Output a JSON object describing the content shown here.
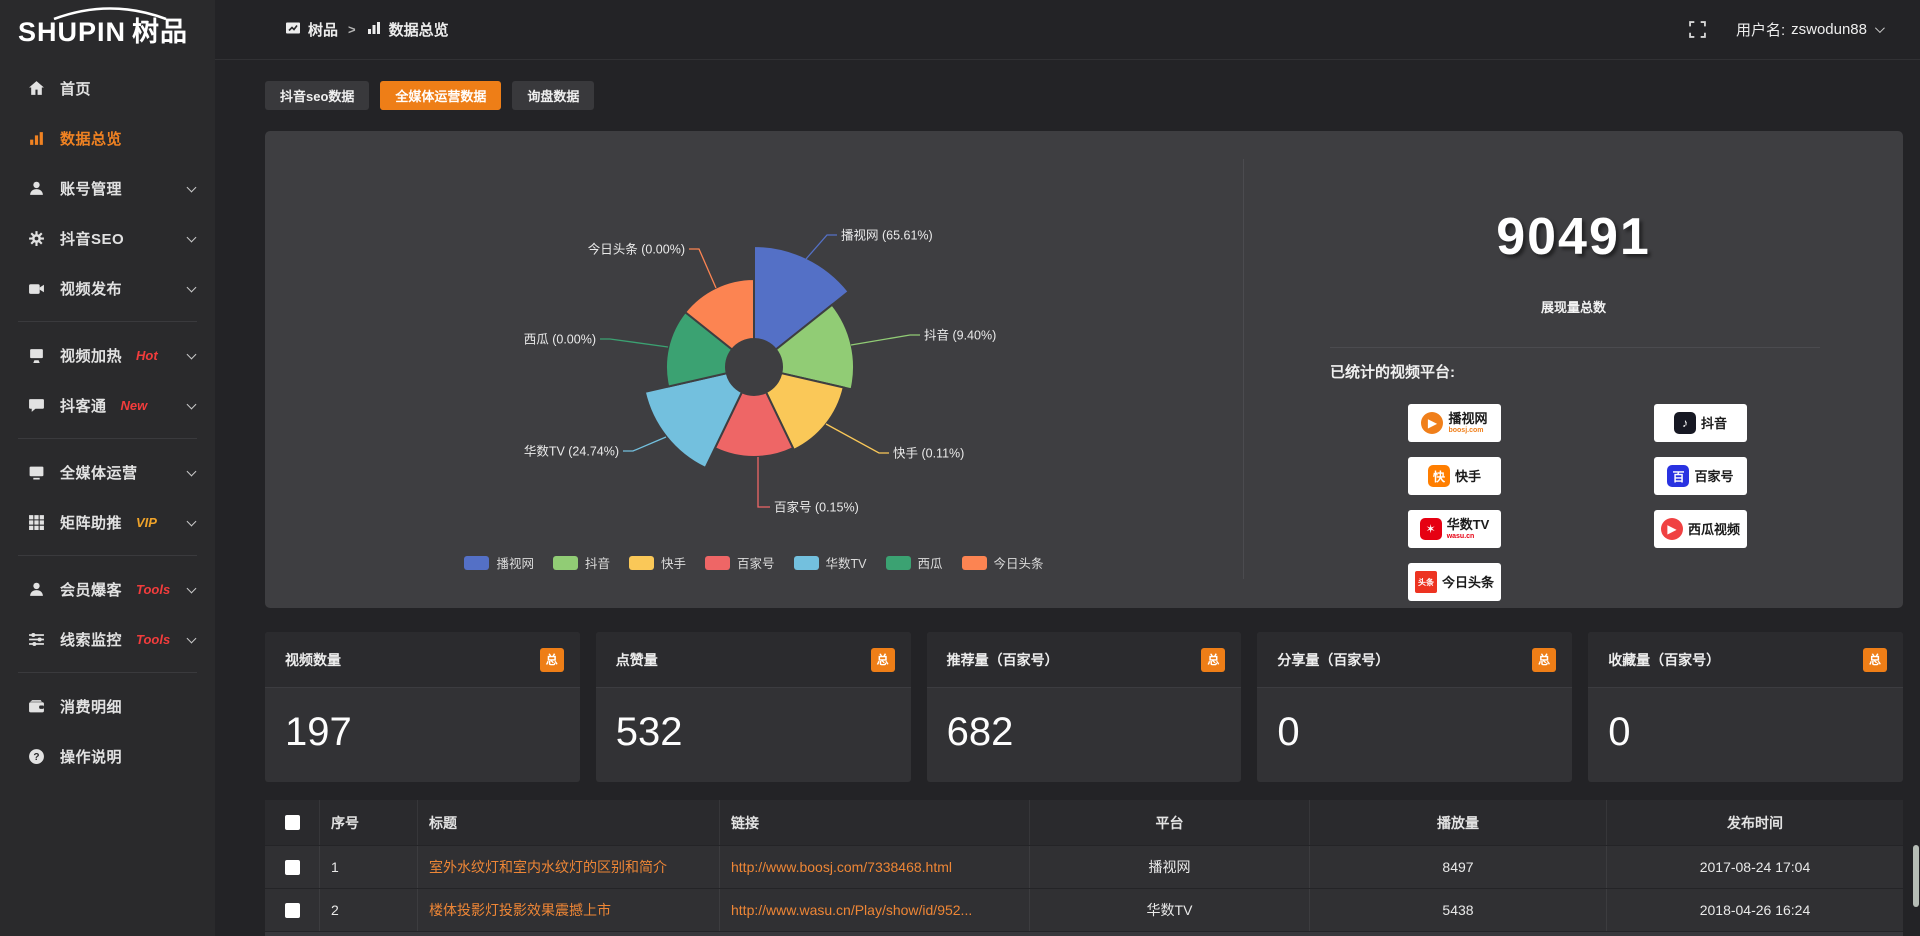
{
  "app": {
    "logo_en": "SHUPIN",
    "logo_cn": "树品"
  },
  "header": {
    "breadcrumb": [
      {
        "icon": "doc-chart",
        "label": "树品"
      },
      {
        "icon": "chart-bars",
        "label": "数据总览"
      }
    ],
    "separator": ">",
    "username_prefix": "用户名:",
    "username": "zswodun88"
  },
  "sidebar": {
    "items": [
      {
        "icon": "home",
        "label": "首页",
        "chevron": false,
        "active": false
      },
      {
        "icon": "chart-bars",
        "label": "数据总览",
        "chevron": false,
        "active": true
      },
      {
        "icon": "user",
        "label": "账号管理",
        "chevron": true,
        "active": false
      },
      {
        "icon": "gear",
        "label": "抖音SEO",
        "chevron": true,
        "active": false
      },
      {
        "icon": "video",
        "label": "视频发布",
        "chevron": true,
        "active": false,
        "divider_after": true
      },
      {
        "icon": "screen-play",
        "label": "视频加热",
        "badge": "Hot",
        "badge_color": "#f23c3c",
        "chevron": true,
        "active": false
      },
      {
        "icon": "chat",
        "label": "抖客通",
        "badge": "New",
        "badge_color": "#f23c3c",
        "chevron": true,
        "active": false,
        "divider_after": true
      },
      {
        "icon": "monitor",
        "label": "全媒体运营",
        "chevron": true,
        "active": false
      },
      {
        "icon": "grid",
        "label": "矩阵助推",
        "badge": "VIP",
        "badge_color": "#efa32a",
        "chevron": true,
        "active": false,
        "divider_after": true
      },
      {
        "icon": "user",
        "label": "会员爆客",
        "badge": "Tools",
        "badge_color": "#f23c3c",
        "chevron": true,
        "active": false
      },
      {
        "icon": "sliders",
        "label": "线索监控",
        "badge": "Tools",
        "badge_color": "#f23c3c",
        "chevron": true,
        "active": false,
        "divider_after": true
      },
      {
        "icon": "wallet",
        "label": "消费明细",
        "chevron": false,
        "active": false
      },
      {
        "icon": "help",
        "label": "操作说明",
        "chevron": false,
        "active": false
      }
    ]
  },
  "tabs": [
    {
      "label": "抖音seo数据",
      "active": false
    },
    {
      "label": "全媒体运营数据",
      "active": true
    },
    {
      "label": "询盘数据",
      "active": false
    }
  ],
  "chart_data": {
    "type": "pie",
    "variant": "nightingale-rose",
    "unit": "%",
    "items": [
      {
        "name": "播视网",
        "value": 65.61,
        "color": "#5470c6"
      },
      {
        "name": "抖音",
        "value": 9.4,
        "color": "#91cc75"
      },
      {
        "name": "快手",
        "value": 0.11,
        "color": "#fac858"
      },
      {
        "name": "百家号",
        "value": 0.15,
        "color": "#ee6666"
      },
      {
        "name": "华数TV",
        "value": 24.74,
        "color": "#73c0de"
      },
      {
        "name": "西瓜",
        "value": 0.0,
        "color": "#3ba272"
      },
      {
        "name": "今日头条",
        "value": 0.0,
        "color": "#fc8452"
      }
    ],
    "legend": [
      "播视网",
      "抖音",
      "快手",
      "百家号",
      "华数TV",
      "西瓜",
      "今日头条"
    ],
    "legend_position": "bottom",
    "label_format": "{name} ({value}%)"
  },
  "summary": {
    "total_value": "90491",
    "total_label": "展现量总数",
    "platforms_label": "已统计的视频平台:",
    "platforms_left": [
      {
        "name": "播视网",
        "sub": "boosj.com",
        "sub_color": "#f07f1a",
        "icon_char": "▶",
        "icon_bg": "#f07f1a",
        "icon_shape": "circle"
      },
      {
        "name": "快手",
        "sub": "",
        "sub_color": "",
        "icon_char": "快",
        "icon_bg": "#ff7e00",
        "icon_shape": "round"
      },
      {
        "name": "华数TV",
        "sub": "wasu.cn",
        "sub_color": "#e60012",
        "icon_char": "✶",
        "icon_bg": "#e60012",
        "icon_shape": "round"
      },
      {
        "name": "今日头条",
        "sub": "",
        "sub_color": "",
        "icon_char": "头条",
        "icon_bg": "#ed3321",
        "icon_shape": "square"
      }
    ],
    "platforms_right": [
      {
        "name": "抖音",
        "sub": "",
        "sub_color": "",
        "icon_char": "♪",
        "icon_bg": "#161823",
        "icon_shape": "round"
      },
      {
        "name": "百家号",
        "sub": "",
        "sub_color": "",
        "icon_char": "百",
        "icon_bg": "#2932e1",
        "icon_shape": "round"
      },
      {
        "name": "西瓜视频",
        "sub": "",
        "sub_color": "",
        "icon_char": "▶",
        "icon_bg": "#f04142",
        "icon_shape": "circle"
      }
    ]
  },
  "stat_cards": [
    {
      "title": "视频数量",
      "badge": "总",
      "value": "197"
    },
    {
      "title": "点赞量",
      "badge": "总",
      "value": "532"
    },
    {
      "title": "推荐量（百家号）",
      "badge": "总",
      "value": "682"
    },
    {
      "title": "分享量（百家号）",
      "badge": "总",
      "value": "0"
    },
    {
      "title": "收藏量（百家号）",
      "badge": "总",
      "value": "0"
    }
  ],
  "table": {
    "headers": [
      "序号",
      "标题",
      "链接",
      "平台",
      "播放量",
      "发布时间"
    ],
    "rows": [
      {
        "no": "1",
        "title": "室外水纹灯和室内水纹灯的区别和简介",
        "link": "http://www.boosj.com/7338468.html",
        "platform": "播视网",
        "plays": "8497",
        "time": "2017-08-24 17:04"
      },
      {
        "no": "2",
        "title": "楼体投影灯投影效果震撼上市",
        "link": "http://www.wasu.cn/Play/show/id/952...",
        "platform": "华数TV",
        "plays": "5438",
        "time": "2018-04-26 16:24"
      }
    ]
  }
}
